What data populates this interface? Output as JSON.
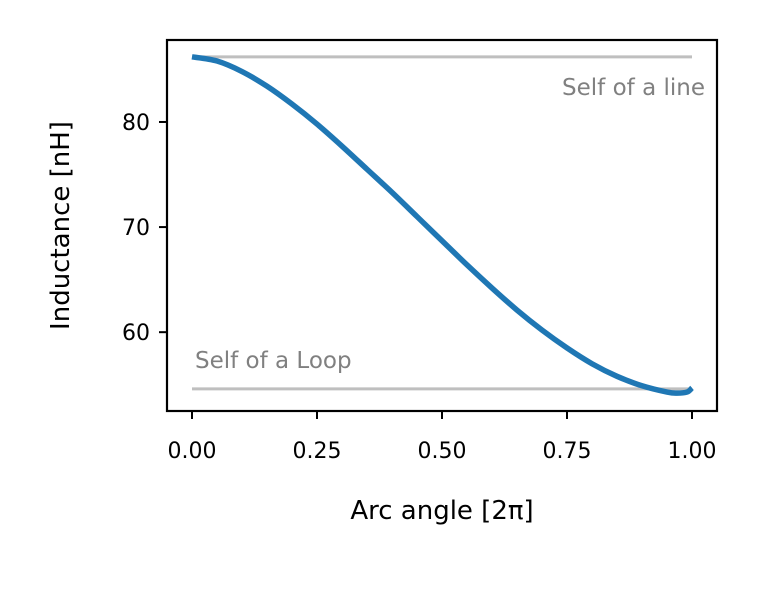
{
  "chart_data": {
    "type": "line",
    "xlabel": "Arc angle [2π]",
    "ylabel": "Inductance [nH]",
    "xlim": [
      -0.05,
      1.05
    ],
    "ylim": [
      52.5,
      87.8
    ],
    "xticks": [
      0.0,
      0.25,
      0.5,
      0.75,
      1.0
    ],
    "xtick_labels": [
      "0.00",
      "0.25",
      "0.50",
      "0.75",
      "1.00"
    ],
    "yticks": [
      60,
      70,
      80
    ],
    "ytick_labels": [
      "60",
      "70",
      "80"
    ],
    "grid": false,
    "legend": "none",
    "series": [
      {
        "color": "#1f77b4",
        "x": [
          0.0,
          0.05,
          0.1,
          0.15,
          0.2,
          0.25,
          0.3,
          0.35,
          0.4,
          0.45,
          0.5,
          0.55,
          0.6,
          0.65,
          0.7,
          0.75,
          0.8,
          0.85,
          0.9,
          0.95,
          0.97,
          0.99,
          1.0
        ],
        "y": [
          86.2,
          85.8,
          84.8,
          83.4,
          81.7,
          79.8,
          77.7,
          75.5,
          73.3,
          71.0,
          68.7,
          66.4,
          64.2,
          62.1,
          60.2,
          58.5,
          57.0,
          55.8,
          54.9,
          54.3,
          54.2,
          54.3,
          54.7
        ]
      }
    ],
    "reference_lines": [
      {
        "y": 86.2,
        "color": "#bfbfbf",
        "label": "Self of a line",
        "label_position": "below-right"
      },
      {
        "y": 54.6,
        "color": "#bfbfbf",
        "label": "Self of a Loop",
        "label_position": "above-left"
      }
    ]
  }
}
